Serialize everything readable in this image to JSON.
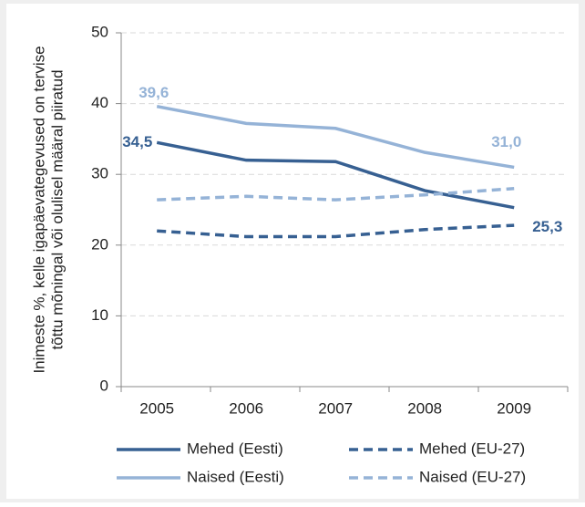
{
  "chart_data": {
    "type": "line",
    "y_label": [
      "Inimeste %, kelle igapäevategevused on tervise",
      "tõttu mõningal või olulisel määral piiratud"
    ],
    "categories": [
      "2005",
      "2006",
      "2007",
      "2008",
      "2009"
    ],
    "series": [
      {
        "name": "Mehed (Eesti)",
        "color": "#376092",
        "dashed": false,
        "values": [
          34.5,
          32.0,
          31.8,
          27.7,
          25.3
        ],
        "value_labels": [
          "34,5",
          null,
          null,
          null,
          "25,3"
        ]
      },
      {
        "name": "Mehed (EU-27)",
        "color": "#376092",
        "dashed": true,
        "values": [
          22.0,
          21.2,
          21.2,
          22.2,
          22.8
        ]
      },
      {
        "name": "Naised (Eesti)",
        "color": "#95b3d7",
        "dashed": false,
        "values": [
          39.6,
          37.2,
          36.5,
          33.1,
          31.0
        ],
        "value_labels": [
          "39,6",
          null,
          null,
          null,
          "31,0"
        ]
      },
      {
        "name": "Naised (EU-27)",
        "color": "#95b3d7",
        "dashed": true,
        "values": [
          26.4,
          26.9,
          26.4,
          27.1,
          28.0
        ]
      }
    ],
    "ylim": [
      0,
      50
    ],
    "yticks": [
      0,
      10,
      20,
      30,
      40,
      50
    ],
    "grid": true,
    "legend": "bottom"
  }
}
